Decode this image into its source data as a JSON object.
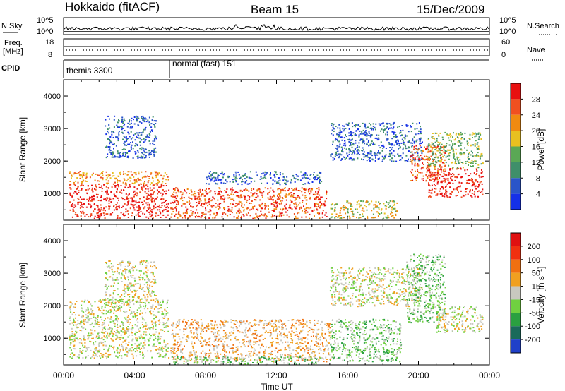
{
  "header": {
    "station": "Hokkaido (fitACF)",
    "beam": "Beam 15",
    "date": "15/Dec/2009"
  },
  "strips": {
    "nsky_label": "N.Sky",
    "nsky_ticks": [
      "10^5",
      "10^0"
    ],
    "nsearch_label": "N.Search",
    "nsearch_ticks": [
      "10^5",
      "10^0"
    ],
    "freq_label_1": "Freq.",
    "freq_label_2": "[MHz]",
    "freq_ticks": [
      "18",
      "8"
    ],
    "nave_label": "Nave",
    "nave_ticks": [
      "60",
      "0"
    ],
    "cpid_label": "CPID",
    "cpid_segments": [
      "themis 3300",
      "normal (fast) 151"
    ]
  },
  "chart_data": [
    {
      "type": "heatmap",
      "name": "power",
      "ylabel": "Slant Range [km]",
      "yticks": [
        "1000",
        "2000",
        "3000",
        "4000"
      ],
      "ylim": [
        180,
        4500
      ],
      "xlim": [
        0,
        24
      ],
      "xticks": [
        "00:00",
        "04:00",
        "08:00",
        "12:00",
        "16:00",
        "20:00",
        "00:00"
      ],
      "colorbar": {
        "label": "Power [dB]",
        "ticks": [
          "4",
          "8",
          "12",
          "16",
          "20",
          "24",
          "28"
        ],
        "colors": [
          "#1530e8",
          "#2a55c8",
          "#3f8f6a",
          "#5aa855",
          "#e8c020",
          "#f08a10",
          "#f05020",
          "#e81010"
        ]
      },
      "regions": [
        {
          "t0": 0.3,
          "t1": 5.9,
          "r0": 250,
          "r1": 1300,
          "level": 7
        },
        {
          "t0": 0.3,
          "t1": 5.9,
          "r0": 1300,
          "r1": 1700,
          "level": 5
        },
        {
          "t0": 2.3,
          "t1": 5.2,
          "r0": 2100,
          "r1": 3400,
          "level": 1
        },
        {
          "t0": 6.0,
          "t1": 14.8,
          "r0": 250,
          "r1": 1200,
          "level": 6
        },
        {
          "t0": 8.0,
          "t1": 14.5,
          "r0": 1300,
          "r1": 1700,
          "level": 1
        },
        {
          "t0": 15.0,
          "t1": 18.8,
          "r0": 250,
          "r1": 800,
          "level": 4
        },
        {
          "t0": 15.0,
          "t1": 20.2,
          "r0": 2000,
          "r1": 3200,
          "level": 1
        },
        {
          "t0": 19.5,
          "t1": 21.5,
          "r0": 1400,
          "r1": 2500,
          "level": 6
        },
        {
          "t0": 20.5,
          "t1": 23.6,
          "r0": 900,
          "r1": 1800,
          "level": 7
        },
        {
          "t0": 20.5,
          "t1": 23.6,
          "r0": 1800,
          "r1": 2900,
          "level": 3
        }
      ]
    },
    {
      "type": "heatmap",
      "name": "velocity",
      "ylabel": "Slant Range [km]",
      "yticks": [
        "1000",
        "2000",
        "3000",
        "4000"
      ],
      "ylim": [
        180,
        4500
      ],
      "xlim": [
        0,
        24
      ],
      "xticks": [
        "00:00",
        "04:00",
        "08:00",
        "12:00",
        "16:00",
        "20:00",
        "00:00"
      ],
      "xlabel": "Time UT",
      "colorbar": {
        "label": "Velocity [m s⁻¹]",
        "ticks": [
          "200",
          "100",
          "50",
          "15",
          "-15",
          "-50",
          "-100",
          "-200"
        ],
        "colors": [
          "#2040c8",
          "#1a6a5a",
          "#2aa040",
          "#70d040",
          "#c8c8c0",
          "#f0a020",
          "#f07010",
          "#f03010",
          "#e01010"
        ]
      },
      "regions": [
        {
          "t0": 0.3,
          "t1": 5.9,
          "r0": 400,
          "r1": 2200,
          "level": 4
        },
        {
          "t0": 2.3,
          "t1": 5.2,
          "r0": 2100,
          "r1": 3400,
          "level": 4
        },
        {
          "t0": 6.0,
          "t1": 15.0,
          "r0": 300,
          "r1": 1600,
          "level": 5
        },
        {
          "t0": 6.0,
          "t1": 14.5,
          "r0": 200,
          "r1": 450,
          "level": 3
        },
        {
          "t0": 15.0,
          "t1": 20.2,
          "r0": 2000,
          "r1": 3200,
          "level": 4
        },
        {
          "t0": 15.0,
          "t1": 19.0,
          "r0": 300,
          "r1": 1600,
          "level": 3
        },
        {
          "t0": 19.3,
          "t1": 21.5,
          "r0": 1500,
          "r1": 3600,
          "level": 3
        },
        {
          "t0": 21.0,
          "t1": 23.6,
          "r0": 1200,
          "r1": 2000,
          "level": 4
        }
      ]
    }
  ]
}
